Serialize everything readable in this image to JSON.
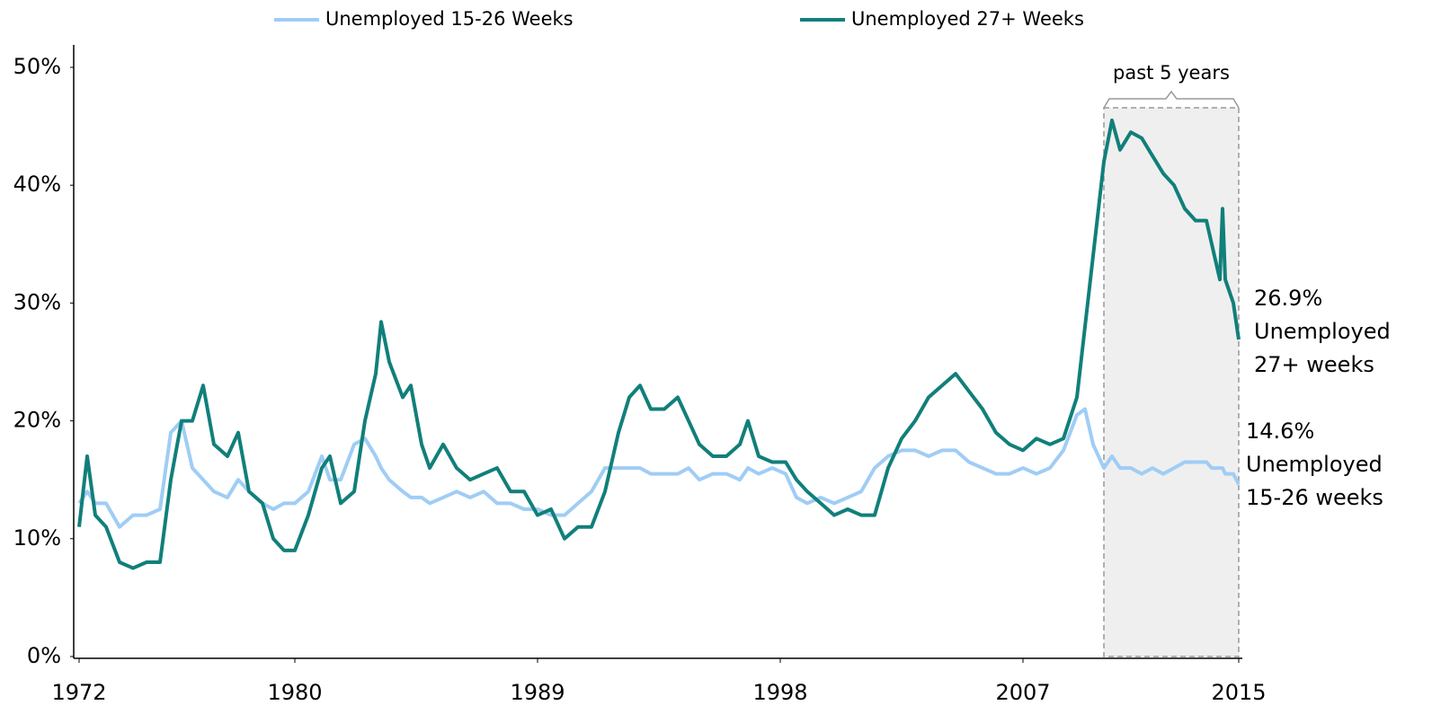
{
  "chart_data": {
    "type": "line",
    "x": [
      1972.0,
      1972.3,
      1972.6,
      1973.0,
      1973.5,
      1974.0,
      1974.5,
      1975.0,
      1975.4,
      1975.8,
      1976.2,
      1976.6,
      1977.0,
      1977.5,
      1977.9,
      1978.3,
      1978.8,
      1979.2,
      1979.6,
      1980.0,
      1980.5,
      1981.0,
      1981.3,
      1981.7,
      1982.2,
      1982.6,
      1983.0,
      1983.2,
      1983.5,
      1984.0,
      1984.3,
      1984.7,
      1985.0,
      1985.5,
      1986.0,
      1986.5,
      1987.0,
      1987.5,
      1988.0,
      1988.5,
      1989.0,
      1989.5,
      1990.0,
      1990.5,
      1991.0,
      1991.5,
      1992.0,
      1992.4,
      1992.8,
      1993.2,
      1993.7,
      1994.2,
      1994.6,
      1995.0,
      1995.5,
      1996.0,
      1996.5,
      1996.8,
      1997.2,
      1997.7,
      1998.2,
      1998.6,
      1999.0,
      1999.5,
      2000.0,
      2000.5,
      2001.0,
      2001.5,
      2002.0,
      2002.5,
      2003.0,
      2003.5,
      2004.0,
      2004.5,
      2005.0,
      2005.5,
      2006.0,
      2006.5,
      2007.0,
      2007.5,
      2008.0,
      2008.5,
      2009.0,
      2009.3,
      2009.6,
      2010.0,
      2010.3,
      2010.6,
      2011.0,
      2011.4,
      2011.8,
      2012.2,
      2012.6,
      2013.0,
      2013.4,
      2013.8,
      2014.0,
      2014.3,
      2014.4,
      2014.5,
      2014.8,
      2015.0
    ],
    "series": [
      {
        "name": "Unemployed 15-26 Weeks",
        "color": "#9fcdf5",
        "values": [
          13,
          14,
          13,
          13,
          11,
          12,
          12,
          12.5,
          19,
          20,
          16,
          15,
          14,
          13.5,
          15,
          14,
          13,
          12.5,
          13,
          13,
          14,
          17,
          15,
          15,
          18,
          18.5,
          17,
          16,
          15,
          14,
          13.5,
          13.5,
          13,
          13.5,
          14,
          13.5,
          14,
          13,
          13,
          12.5,
          12.5,
          12,
          12,
          13,
          14,
          16,
          16,
          16,
          16,
          15.5,
          15.5,
          15.5,
          16,
          15,
          15.5,
          15.5,
          15,
          16,
          15.5,
          16,
          15.5,
          13.5,
          13,
          13.5,
          13,
          13.5,
          14,
          16,
          17,
          17.5,
          17.5,
          17,
          17.5,
          17.5,
          16.5,
          16,
          15.5,
          15.5,
          16,
          15.5,
          16,
          17.5,
          20.5,
          21,
          18,
          16,
          17,
          16,
          16,
          15.5,
          16,
          15.5,
          16,
          16.5,
          16.5,
          16.5,
          16,
          16,
          16,
          15.5,
          15.5,
          14.6
        ]
      },
      {
        "name": "Unemployed 27+ Weeks",
        "color": "#117f7a",
        "values": [
          11,
          17,
          12,
          11,
          8,
          7.5,
          8,
          8,
          15,
          20,
          20,
          23,
          18,
          17,
          19,
          14,
          13,
          10,
          9,
          9,
          12,
          16,
          17,
          13,
          14,
          20,
          24,
          28.4,
          25,
          22,
          23,
          18,
          16,
          18,
          16,
          15,
          15.5,
          16,
          14,
          14,
          12,
          12.5,
          10,
          11,
          11,
          14,
          19,
          22,
          23,
          21,
          21,
          22,
          20,
          18,
          17,
          17,
          18,
          20,
          17,
          16.5,
          16.5,
          15,
          14,
          13,
          12,
          12.5,
          12,
          12,
          16,
          18.5,
          20,
          22,
          23,
          24,
          22.5,
          21,
          19,
          18,
          17.5,
          18.5,
          18,
          18.5,
          22,
          28,
          34,
          42,
          45.5,
          43,
          44.5,
          44,
          42.5,
          41,
          40,
          38,
          37,
          37,
          35,
          32,
          38,
          32,
          30,
          26.9
        ]
      }
    ],
    "xlim": [
      1972,
      2015
    ],
    "xticks": [
      1972,
      1980,
      1989,
      1998,
      2007,
      2015
    ],
    "ylim": [
      0,
      50
    ],
    "yticks": [
      {
        "value": 0,
        "label": "0%"
      },
      {
        "value": 10,
        "label": "10%"
      },
      {
        "value": 20,
        "label": "20%"
      },
      {
        "value": 30,
        "label": "30%"
      },
      {
        "value": 40,
        "label": "40%"
      },
      {
        "value": 50,
        "label": "50%"
      }
    ],
    "grid": false,
    "legend": "top",
    "highlight": {
      "label": "past 5 years",
      "x": [
        2010,
        2015
      ]
    },
    "annotations": [
      {
        "lines": [
          "26.9%",
          "Unemployed",
          "27+ weeks"
        ],
        "y": 26.9
      },
      {
        "lines": [
          "14.6%",
          "Unemployed",
          "15-26 weeks"
        ],
        "y": 14.6
      }
    ]
  }
}
